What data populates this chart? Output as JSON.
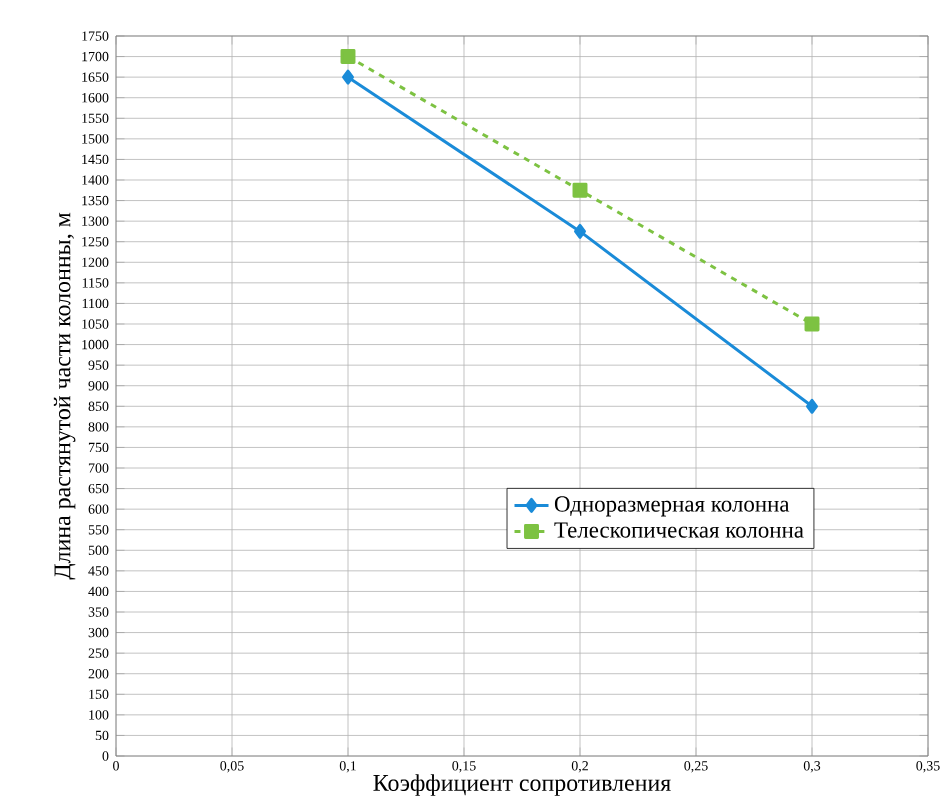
{
  "chart_data": {
    "type": "line",
    "xlabel": "Коэффициент сопротивления",
    "ylabel": "Длина растянутой части колонны, м",
    "series": [
      {
        "name": "Одноразмерная колонна",
        "color": "#1a8bd8",
        "x": [
          0.1,
          0.2,
          0.3
        ],
        "values": [
          1650,
          1275,
          850
        ],
        "marker": "diamond",
        "line_style": "solid"
      },
      {
        "name": "Телескопическая колонна",
        "color": "#7dc242",
        "x": [
          0.1,
          0.2,
          0.3
        ],
        "values": [
          1700,
          1375,
          1050
        ],
        "marker": "square",
        "line_style": "dashed"
      }
    ],
    "xlim": [
      0,
      0.35
    ],
    "xticks": [
      0,
      {
        "value": 0.05,
        "label": "0,05"
      },
      {
        "value": 0.1,
        "label": "0,1"
      },
      {
        "value": 0.15,
        "label": "0,15"
      },
      {
        "value": 0.2,
        "label": "0,2"
      },
      {
        "value": 0.25,
        "label": "0,25"
      },
      {
        "value": 0.3,
        "label": "0,3"
      },
      {
        "value": 0.35,
        "label": "0,35"
      }
    ],
    "ylim": [
      0,
      1750
    ],
    "yticks": [
      0,
      50,
      100,
      150,
      200,
      250,
      300,
      350,
      400,
      450,
      500,
      550,
      600,
      650,
      700,
      750,
      800,
      850,
      900,
      950,
      1000,
      1050,
      1100,
      1150,
      1200,
      1250,
      1300,
      1350,
      1400,
      1450,
      1500,
      1550,
      1600,
      1650,
      1700,
      1750
    ],
    "grid": true,
    "legend": "right"
  }
}
